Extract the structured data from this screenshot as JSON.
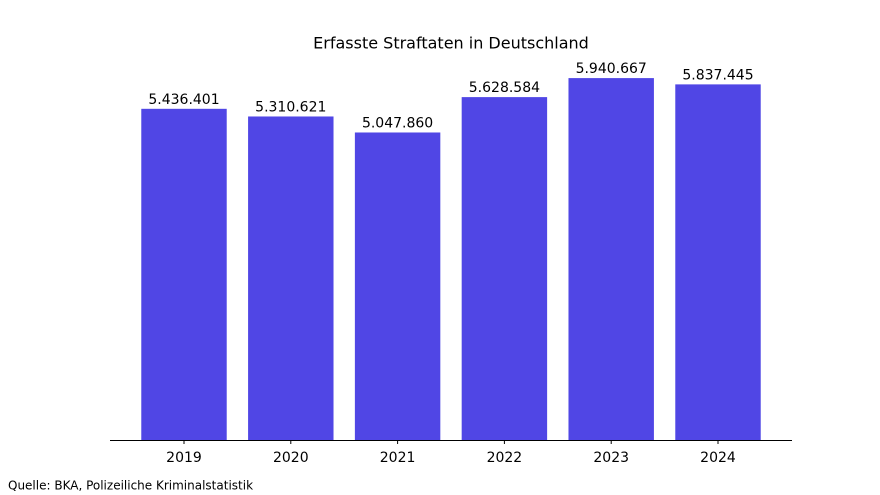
{
  "chart_data": {
    "type": "bar",
    "title": "Erfasste Straftaten in Deutschland",
    "categories": [
      "2019",
      "2020",
      "2021",
      "2022",
      "2023",
      "2024"
    ],
    "values": [
      5436401,
      5310621,
      5047860,
      5628584,
      5940667,
      5837445
    ],
    "value_labels": [
      "5.436.401",
      "5.310.621",
      "5.047.860",
      "5.628.584",
      "5.940.667",
      "5.837.445"
    ],
    "color": "#5046e5",
    "ylim": [
      0,
      6237700
    ]
  },
  "source": "Quelle: BKA, Polizeiliche Kriminalstatistik"
}
